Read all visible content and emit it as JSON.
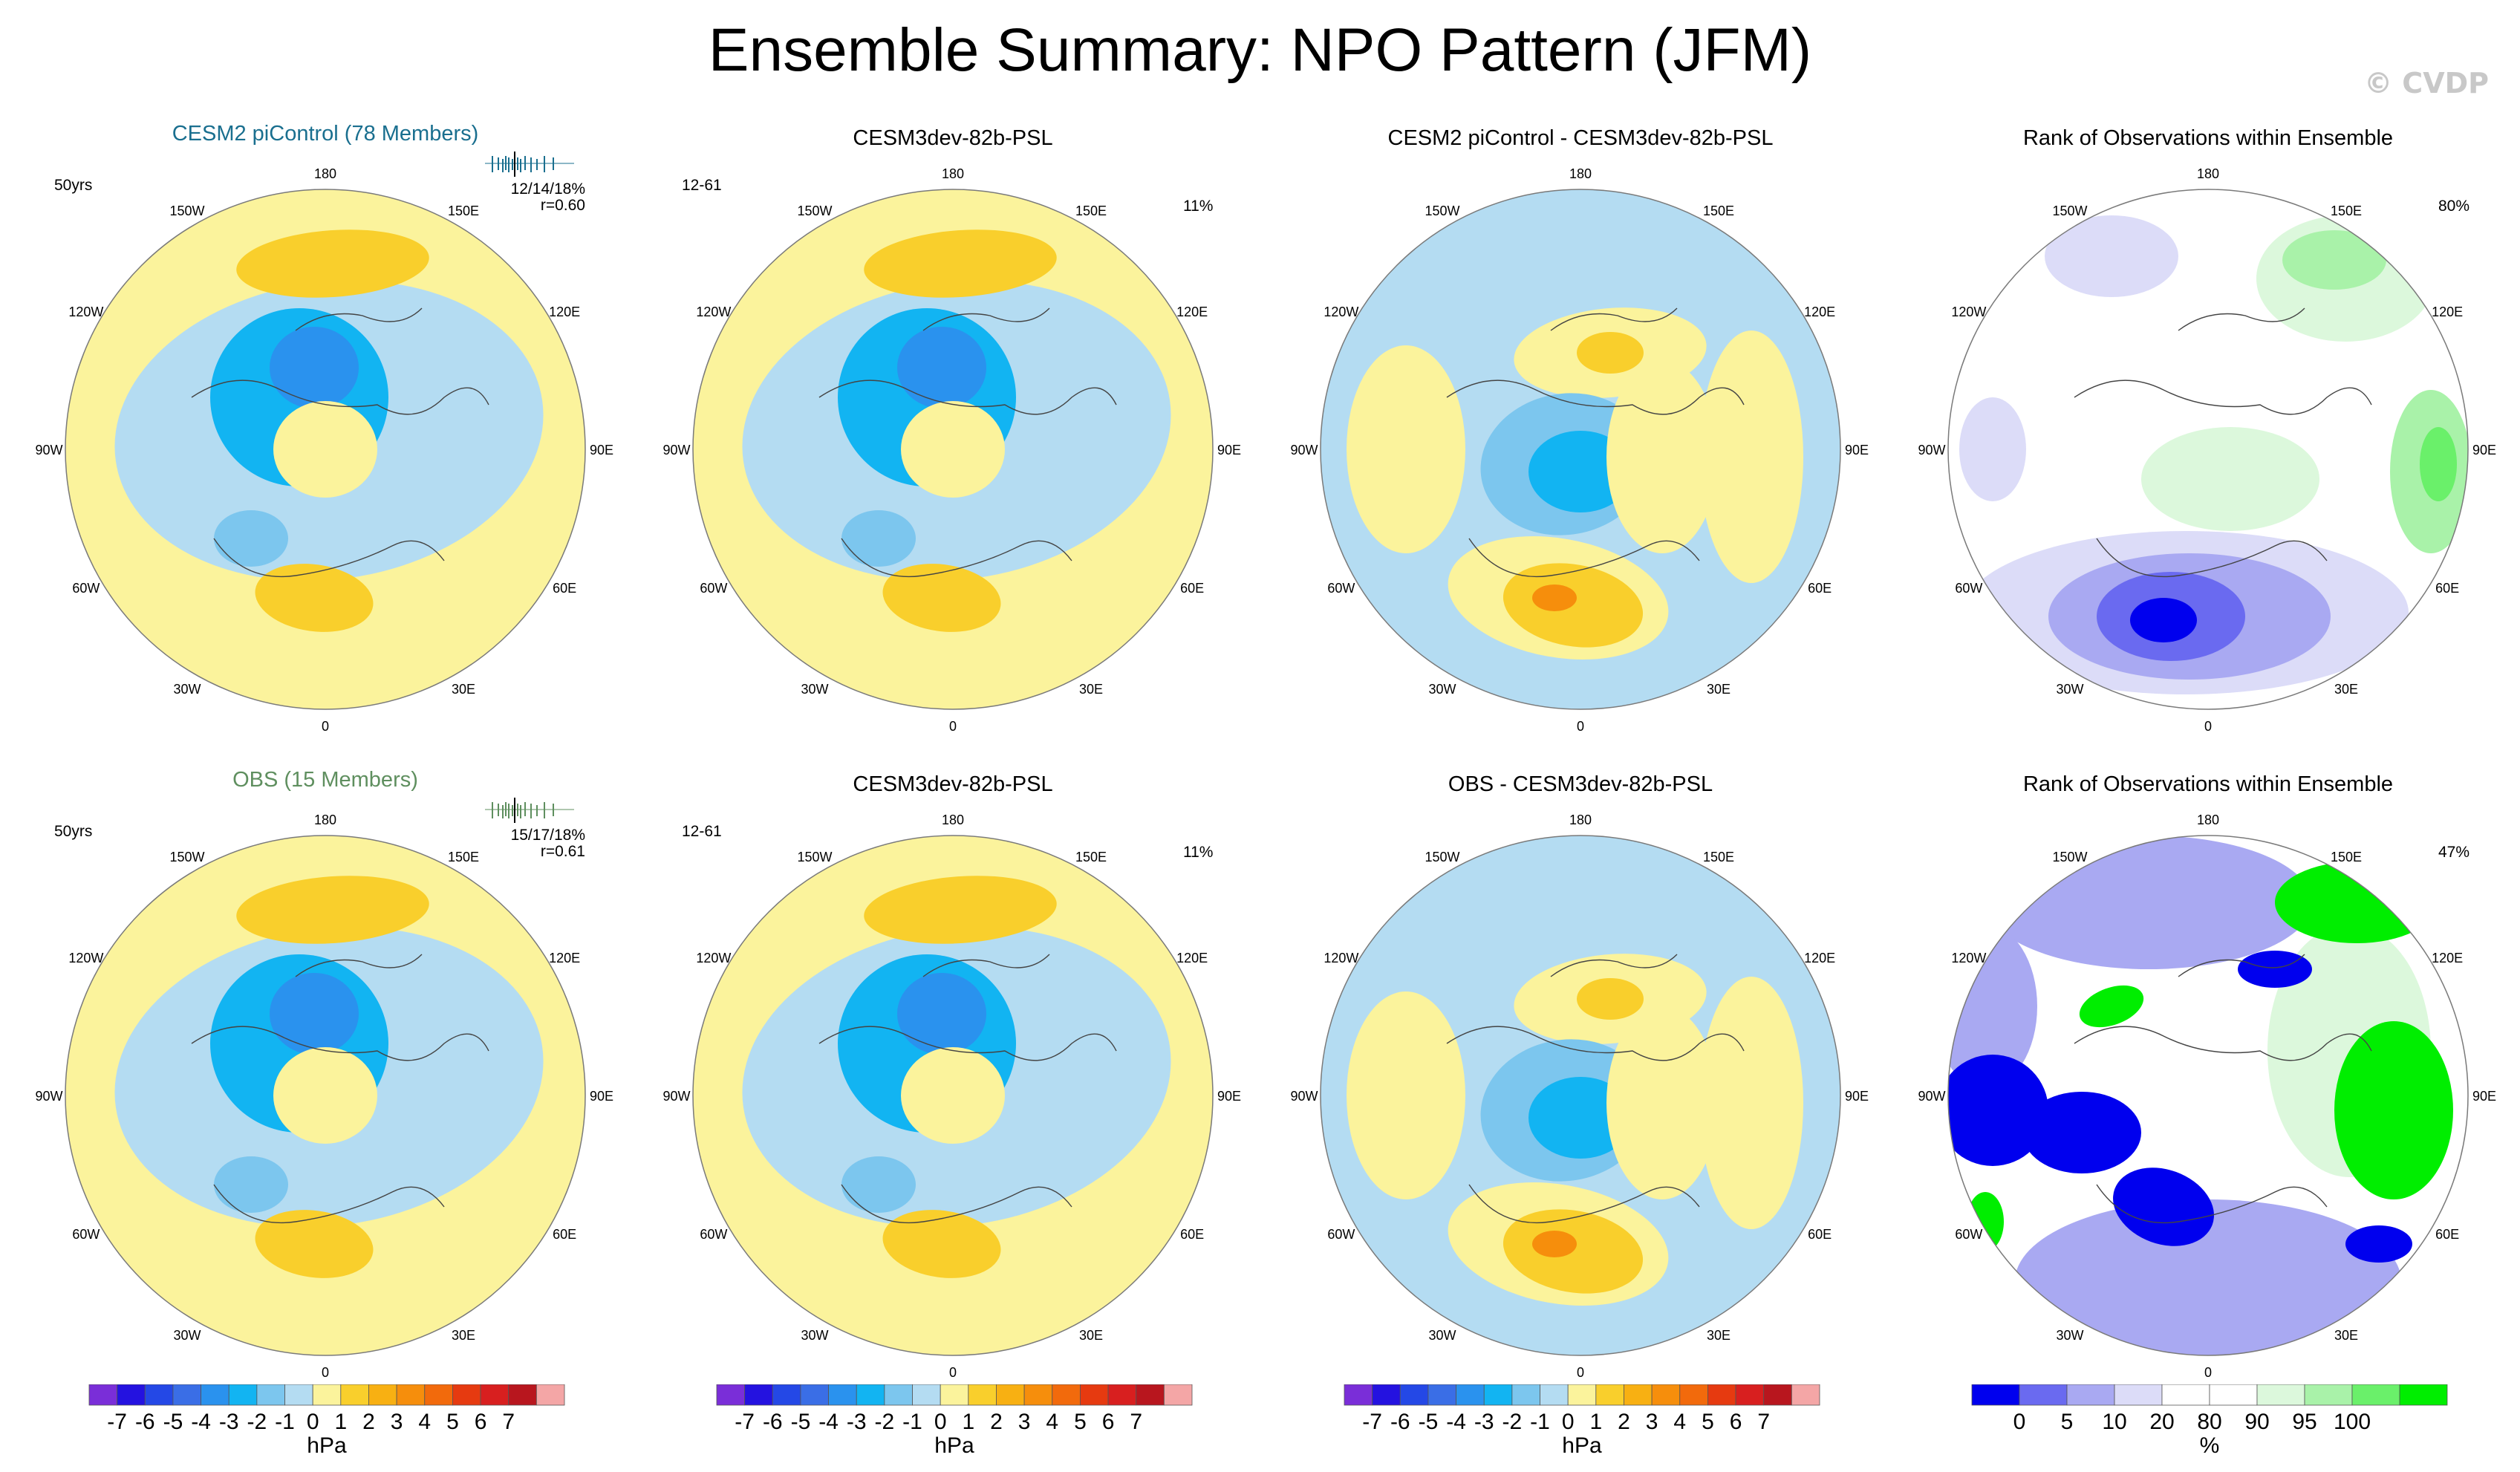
{
  "title": "Ensemble Summary: NPO Pattern (JFM)",
  "watermark": "© CVDP",
  "lon_labels": [
    "180",
    "150E",
    "120E",
    "90E",
    "60E",
    "30E",
    "0",
    "30W",
    "60W",
    "90W",
    "120W",
    "150W"
  ],
  "psl_colors": [
    "#7a2ed8",
    "#2412e0",
    "#2448e6",
    "#3a6ee6",
    "#2a92ee",
    "#12b4f2",
    "#7cc6ee",
    "#b4dcf2",
    "#fbf39c",
    "#f9cf2c",
    "#f8b012",
    "#f68e0c",
    "#f26a0c",
    "#e63a10",
    "#d81f1f",
    "#b8161e",
    "#f4a6a6"
  ],
  "rank_colors": [
    "#0000ee",
    "#6a6af0",
    "#a9a9f2",
    "#dcdcf8",
    "#ffffff",
    "#ffffff",
    "#dcf8dc",
    "#a9f2a9",
    "#6af06a",
    "#00ee00"
  ],
  "chart_data": [
    {
      "type": "heatmap",
      "title": "CESM2 piControl (78 Members)",
      "left_label": "50yrs",
      "stats": "12/14/18%",
      "corr": "r=0.60",
      "pct": "",
      "shape": "npo"
    },
    {
      "type": "heatmap",
      "title": "CESM3dev-82b-PSL",
      "left_label": "12-61",
      "stats": "",
      "corr": "",
      "pct": "11%",
      "shape": "npo"
    },
    {
      "type": "heatmap",
      "title": "CESM2 piControl - CESM3dev-82b-PSL",
      "left_label": "",
      "stats": "",
      "corr": "",
      "pct": "",
      "shape": "diff"
    },
    {
      "type": "heatmap",
      "title": "Rank of Observations within Ensemble",
      "left_label": "",
      "stats": "",
      "corr": "",
      "pct": "80%",
      "shape": "rank1"
    },
    {
      "type": "heatmap",
      "title": "OBS (15 Members)",
      "left_label": "50yrs",
      "stats": "15/17/18%",
      "corr": "r=0.61",
      "pct": "",
      "shape": "npo"
    },
    {
      "type": "heatmap",
      "title": "CESM3dev-82b-PSL",
      "left_label": "12-61",
      "stats": "",
      "corr": "",
      "pct": "11%",
      "shape": "npo"
    },
    {
      "type": "heatmap",
      "title": "OBS - CESM3dev-82b-PSL",
      "left_label": "",
      "stats": "",
      "corr": "",
      "pct": "",
      "shape": "diff"
    },
    {
      "type": "heatmap",
      "title": "Rank of Observations within Ensemble",
      "left_label": "",
      "stats": "",
      "corr": "",
      "pct": "47%",
      "shape": "rank2"
    }
  ],
  "colorbars": {
    "psl": {
      "labels": [
        "-7",
        "-6",
        "-5",
        "-4",
        "-3",
        "-2",
        "-1",
        "0",
        "1",
        "2",
        "3",
        "4",
        "5",
        "6",
        "7"
      ],
      "unit": "hPa"
    },
    "rank": {
      "labels": [
        "0",
        "5",
        "10",
        "20",
        "80",
        "90",
        "95",
        "100"
      ],
      "unit": "%"
    }
  }
}
